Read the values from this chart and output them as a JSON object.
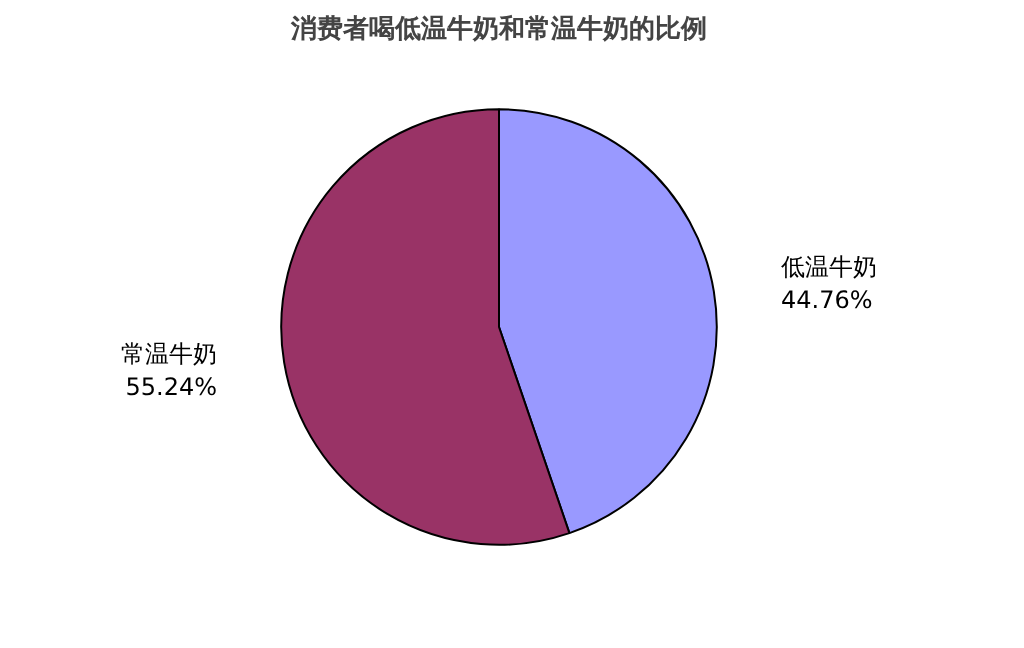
{
  "chart_data": {
    "type": "pie",
    "title": "消费者喝低温牛奶和常温牛奶的比例",
    "categories": [
      "低温牛奶",
      "常温牛奶"
    ],
    "values": [
      44.76,
      55.24
    ],
    "colors": [
      "#9999ff",
      "#993366"
    ],
    "value_labels": [
      "44.76%",
      "55.24%"
    ]
  }
}
